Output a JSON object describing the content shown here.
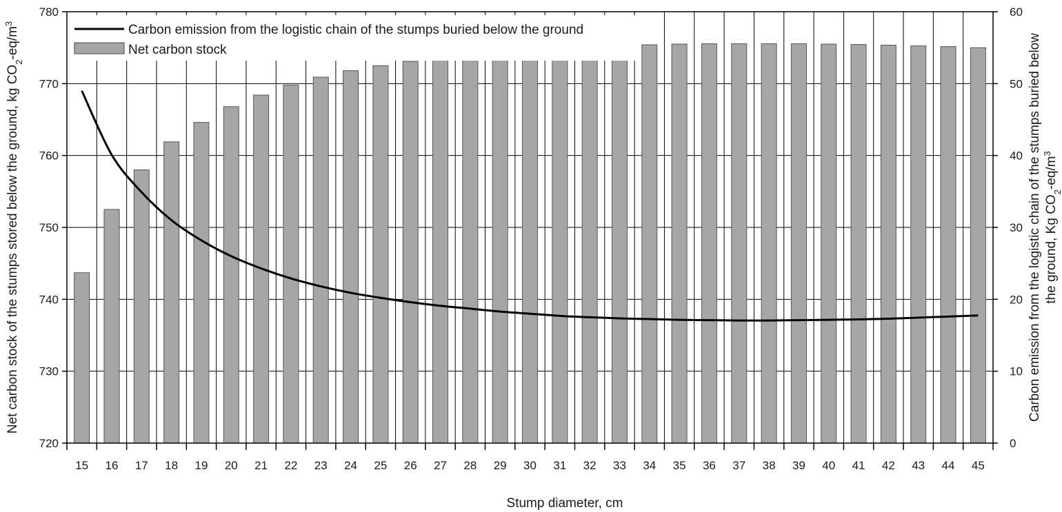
{
  "chart_data": {
    "type": "bar",
    "categories": [
      "15",
      "16",
      "17",
      "18",
      "19",
      "20",
      "21",
      "22",
      "23",
      "24",
      "25",
      "26",
      "27",
      "28",
      "29",
      "30",
      "31",
      "32",
      "33",
      "34",
      "35",
      "36",
      "37",
      "38",
      "39",
      "40",
      "41",
      "42",
      "43",
      "44",
      "45"
    ],
    "series": [
      {
        "name": "Net carbon stock",
        "kind": "bar",
        "axis": "left",
        "color": "#a6a6a6",
        "values": [
          743.7,
          752.5,
          758.0,
          761.9,
          764.6,
          766.8,
          768.4,
          769.8,
          770.9,
          771.8,
          772.5,
          773.1,
          773.6,
          774.1,
          774.4,
          774.7,
          774.9,
          775.1,
          775.3,
          775.4,
          775.5,
          775.55,
          775.55,
          775.55,
          775.55,
          775.5,
          775.45,
          775.35,
          775.25,
          775.15,
          775.0
        ]
      },
      {
        "name": "Carbon emission from the logistic chain of the stumps buried below the ground",
        "kind": "line",
        "axis": "right",
        "color": "#000000",
        "values": [
          49.0,
          40.1,
          34.9,
          31.0,
          28.2,
          26.0,
          24.3,
          22.9,
          21.8,
          20.9,
          20.2,
          19.6,
          19.1,
          18.7,
          18.3,
          18.0,
          17.7,
          17.5,
          17.35,
          17.25,
          17.15,
          17.1,
          17.05,
          17.05,
          17.1,
          17.15,
          17.2,
          17.3,
          17.45,
          17.6,
          17.75
        ]
      }
    ],
    "xlabel": "Stump diameter, cm",
    "ylabel": {
      "text": "Net carbon stock of the stumps stored below the  ground, kg CO",
      "sub": "2",
      "tail": "-eq/m",
      "sup": "3"
    },
    "y2label": {
      "line1": "Carbon emission from the logistic chain of the stumps buried below",
      "line2_text": "the ground, Kg CO",
      "line2_sub": "2",
      "line2_tail": "-eq/m",
      "line2_sup": "3"
    },
    "ylim": [
      720,
      780
    ],
    "yticks": [
      "720",
      "730",
      "740",
      "750",
      "760",
      "770",
      "780"
    ],
    "y2lim": [
      0,
      60
    ],
    "y2ticks": [
      "0",
      "10",
      "20",
      "30",
      "40",
      "50",
      "60"
    ],
    "grid": "horizontal and vertical",
    "legend": "top-left"
  }
}
